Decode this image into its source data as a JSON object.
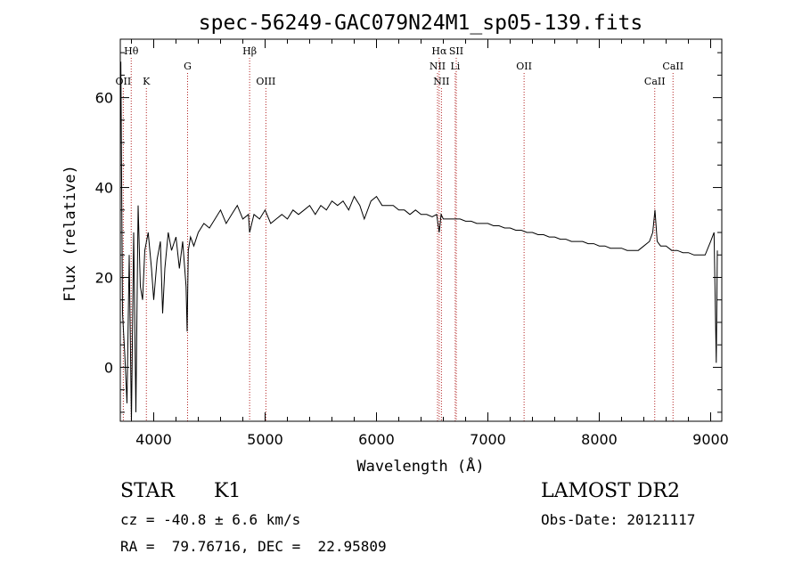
{
  "chart_data": {
    "type": "line",
    "title": "spec-56249-GAC079N24M1_sp05-139.fits",
    "xlabel": "Wavelength (Å)",
    "ylabel": "Flux (relative)",
    "xlim": [
      3700,
      9100
    ],
    "ylim": [
      -12,
      73
    ],
    "xticks": [
      4000,
      5000,
      6000,
      7000,
      8000,
      9000
    ],
    "yticks": [
      0,
      20,
      40,
      60
    ],
    "grid": false,
    "line_color": "#000000",
    "marker_color": "#b22222",
    "series": [
      {
        "x": [
          3705,
          3720,
          3740,
          3760,
          3780,
          3800,
          3820,
          3840,
          3860,
          3880,
          3900,
          3920,
          3950,
          3980,
          4000,
          4030,
          4060,
          4080,
          4100,
          4130,
          4160,
          4200,
          4230,
          4260,
          4290,
          4300,
          4310,
          4330,
          4360,
          4400,
          4450,
          4500,
          4550,
          4600,
          4650,
          4700,
          4750,
          4800,
          4850,
          4861,
          4900,
          4950,
          5000,
          5050,
          5100,
          5150,
          5200,
          5250,
          5300,
          5350,
          5400,
          5450,
          5500,
          5550,
          5600,
          5650,
          5700,
          5750,
          5800,
          5850,
          5890,
          5950,
          6000,
          6050,
          6100,
          6150,
          6200,
          6250,
          6300,
          6350,
          6400,
          6450,
          6500,
          6540,
          6563,
          6580,
          6600,
          6650,
          6700,
          6750,
          6800,
          6850,
          6900,
          6950,
          7000,
          7050,
          7100,
          7150,
          7200,
          7250,
          7300,
          7350,
          7400,
          7450,
          7500,
          7550,
          7600,
          7650,
          7700,
          7750,
          7800,
          7850,
          7900,
          7950,
          8000,
          8050,
          8100,
          8150,
          8200,
          8250,
          8300,
          8350,
          8400,
          8450,
          8480,
          8500,
          8520,
          8550,
          8600,
          8650,
          8700,
          8750,
          8800,
          8850,
          8900,
          8950,
          9000,
          9030,
          9050,
          9060
        ],
        "y": [
          68,
          12,
          3,
          -8,
          25,
          -12,
          30,
          -10,
          36,
          18,
          15,
          26,
          30,
          22,
          15,
          24,
          28,
          12,
          22,
          30,
          26,
          29,
          22,
          28,
          18,
          8,
          26,
          29,
          27,
          30,
          32,
          31,
          33,
          35,
          32,
          34,
          36,
          33,
          34,
          30,
          34,
          33,
          35,
          32,
          33,
          34,
          33,
          35,
          34,
          35,
          36,
          34,
          36,
          35,
          37,
          36,
          37,
          35,
          38,
          36,
          33,
          37,
          38,
          36,
          36,
          36,
          35,
          35,
          34,
          35,
          34,
          34,
          33.5,
          34,
          30,
          34,
          33,
          33,
          33,
          33,
          32.5,
          32.5,
          32,
          32,
          32,
          31.5,
          31.5,
          31,
          31,
          30.5,
          30.5,
          30,
          30,
          29.5,
          29.5,
          29,
          29,
          28.5,
          28.5,
          28,
          28,
          28,
          27.5,
          27.5,
          27,
          27,
          26.5,
          26.5,
          26.5,
          26,
          26,
          26,
          27,
          28,
          30,
          35,
          28,
          27,
          27,
          26,
          26,
          25.5,
          25.5,
          25,
          25,
          25,
          28,
          30,
          1,
          26
        ]
      }
    ],
    "line_markers": [
      {
        "x": 3727,
        "label": "OII",
        "row": "low"
      },
      {
        "x": 3798,
        "label": "Hθ",
        "row": "high"
      },
      {
        "x": 3934,
        "label": "K",
        "row": "low"
      },
      {
        "x": 4304,
        "label": "G",
        "row": "mid"
      },
      {
        "x": 4861,
        "label": "Hβ",
        "row": "high"
      },
      {
        "x": 5007,
        "label": "OIII",
        "row": "low"
      },
      {
        "x": 6548,
        "label": "NII",
        "row": "mid"
      },
      {
        "x": 6563,
        "label": "Hα",
        "row": "high"
      },
      {
        "x": 6583,
        "label": "NII",
        "row": "low"
      },
      {
        "x": 6707,
        "label": "Li",
        "row": "mid"
      },
      {
        "x": 6716,
        "label": "SII",
        "row": "high"
      },
      {
        "x": 7325,
        "label": "OII",
        "row": "mid"
      },
      {
        "x": 8498,
        "label": "CaII",
        "row": "low"
      },
      {
        "x": 8662,
        "label": "CaII",
        "row": "mid"
      }
    ]
  },
  "info": {
    "class_label": "STAR",
    "subclass_label": "K1",
    "survey_label": "LAMOST DR2",
    "redshift_text": "cz = -40.8 ± 6.6 km/s",
    "obs_date_text": "Obs-Date: 20121117",
    "coords_text": "RA =  79.76716, DEC =  22.95809"
  }
}
